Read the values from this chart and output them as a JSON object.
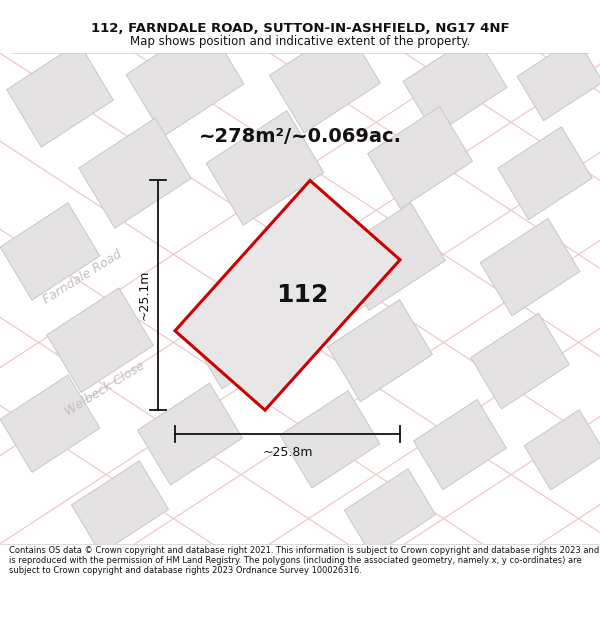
{
  "title_line1": "112, FARNDALE ROAD, SUTTON-IN-ASHFIELD, NG17 4NF",
  "title_line2": "Map shows position and indicative extent of the property.",
  "area_label": "~278m²/~0.069ac.",
  "plot_number": "112",
  "dim_vertical": "~25.1m",
  "dim_horizontal": "~25.8m",
  "road_label1": "Farndale Road",
  "road_label2": "Welbeck Close",
  "footer_text": "Contains OS data © Crown copyright and database right 2021. This information is subject to Crown copyright and database rights 2023 and is reproduced with the permission of HM Land Registry. The polygons (including the associated geometry, namely x, y co-ordinates) are subject to Crown copyright and database rights 2023 Ordnance Survey 100026316.",
  "map_bg": "#f7f6f6",
  "plot_fill": "#e8e6e6",
  "plot_edge": "#cc0000",
  "building_fill": "#e4e2e2",
  "building_edge": "#c8c6c6",
  "road_outline_color": "#f0c8c8",
  "dim_line_color": "#111111",
  "fig_width": 6.0,
  "fig_height": 6.25,
  "title_fontsize": 9.5,
  "subtitle_fontsize": 8.5,
  "area_fontsize": 14,
  "plot_num_fontsize": 18,
  "dim_fontsize": 9,
  "road_label_fontsize": 9,
  "footer_fontsize": 6.0
}
